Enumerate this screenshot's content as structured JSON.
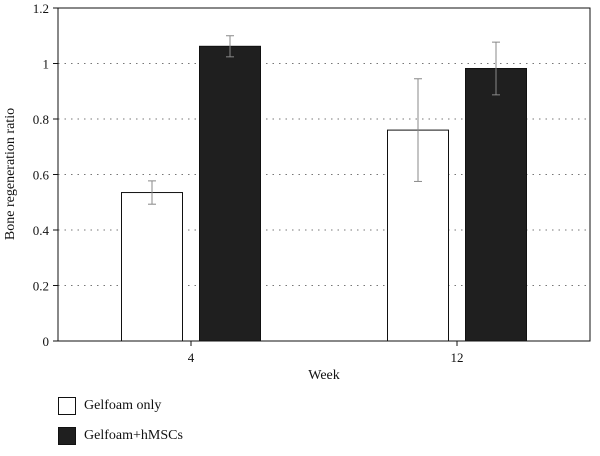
{
  "chart_data": {
    "type": "bar",
    "title": "",
    "xlabel": "Week",
    "ylabel": "Bone regeneration ratio",
    "categories": [
      "4",
      "12"
    ],
    "ylim": [
      0,
      1.2
    ],
    "yticks": [
      "0",
      "0.2",
      "0.4",
      "0.6",
      "0.8",
      "1",
      "1.2"
    ],
    "grid": "horizontal dotted",
    "legend_position": "bottom-left",
    "series": [
      {
        "name": "Gelfoam only",
        "color": "#ffffff",
        "values": [
          0.535,
          0.76
        ],
        "error": [
          0.042,
          0.185
        ]
      },
      {
        "name": "Gelfoam+hMSCs",
        "color": "#1f1f1f",
        "values": [
          1.062,
          0.982
        ],
        "error": [
          0.038,
          0.095
        ]
      }
    ]
  }
}
